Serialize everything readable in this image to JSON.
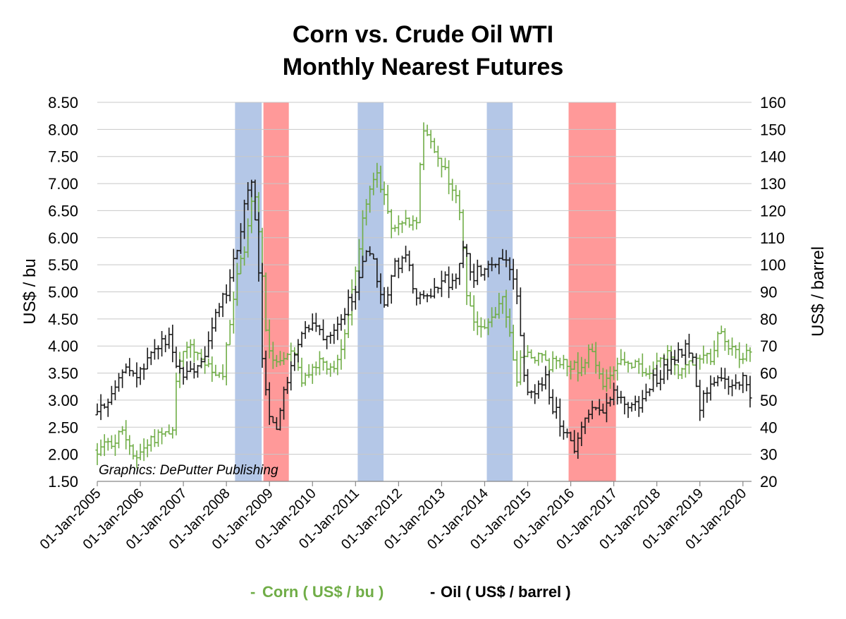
{
  "chart_data": {
    "type": "line",
    "title": "Corn vs. Crude Oil WTI",
    "subtitle": "Monthly Nearest Futures",
    "ylabel_left": "US$ / bu",
    "ylabel_right": "US$ / barrel",
    "credit": "Graphics: DePutter Publishing",
    "ylim_left": [
      1.5,
      8.5
    ],
    "ylim_right": [
      20,
      160
    ],
    "yticks_left": [
      "1.50",
      "2.00",
      "2.50",
      "3.00",
      "3.50",
      "4.00",
      "4.50",
      "5.00",
      "5.50",
      "6.00",
      "6.50",
      "7.00",
      "7.50",
      "8.00",
      "8.50"
    ],
    "yticks_right": [
      "20",
      "30",
      "40",
      "50",
      "60",
      "70",
      "80",
      "90",
      "100",
      "110",
      "120",
      "130",
      "140",
      "150",
      "160"
    ],
    "xlim": [
      2005.0,
      2020.2
    ],
    "x_ticks": [
      {
        "label": "01-Jan-2005",
        "x": 2005
      },
      {
        "label": "01-Jan-2006",
        "x": 2006
      },
      {
        "label": "01-Jan-2007",
        "x": 2007
      },
      {
        "label": "01-Jan-2008",
        "x": 2008
      },
      {
        "label": "01-Jan-2009",
        "x": 2009
      },
      {
        "label": "01-Jan-2010",
        "x": 2010
      },
      {
        "label": "01-Jan-2011",
        "x": 2011
      },
      {
        "label": "01-Jan-2012",
        "x": 2012
      },
      {
        "label": "01-Jan-2013",
        "x": 2013
      },
      {
        "label": "01-Jan-2014",
        "x": 2014
      },
      {
        "label": "01-Jan-2015",
        "x": 2015
      },
      {
        "label": "01-Jan-2016",
        "x": 2016
      },
      {
        "label": "01-Jan-2017",
        "x": 2017
      },
      {
        "label": "01-Jan-2018",
        "x": 2018
      },
      {
        "label": "01-Jan-2019",
        "x": 2019
      },
      {
        "label": "01-Jan-2020",
        "x": 2020
      }
    ],
    "grid": true,
    "legend_position": "bottom-center",
    "shaded_regions": [
      {
        "start": 2008.2,
        "end": 2008.82,
        "color": "#b4c7e7"
      },
      {
        "start": 2008.86,
        "end": 2009.45,
        "color": "#ff9999"
      },
      {
        "start": 2011.05,
        "end": 2011.65,
        "color": "#b4c7e7"
      },
      {
        "start": 2014.05,
        "end": 2014.65,
        "color": "#b4c7e7"
      },
      {
        "start": 2015.95,
        "end": 2017.05,
        "color": "#ff9999"
      }
    ],
    "series": [
      {
        "name": "Corn ( US$ / bu )",
        "axis": "left",
        "color": "#70ad47",
        "anchors": [
          [
            2005.0,
            2.05
          ],
          [
            2005.3,
            2.2
          ],
          [
            2005.6,
            2.4
          ],
          [
            2005.9,
            1.95
          ],
          [
            2006.2,
            2.25
          ],
          [
            2006.5,
            2.4
          ],
          [
            2006.75,
            2.5
          ],
          [
            2006.85,
            3.6
          ],
          [
            2007.15,
            4.1
          ],
          [
            2007.5,
            3.6
          ],
          [
            2007.9,
            3.35
          ],
          [
            2008.2,
            5.1
          ],
          [
            2008.45,
            5.9
          ],
          [
            2008.65,
            7.0
          ],
          [
            2008.8,
            5.6
          ],
          [
            2008.95,
            4.0
          ],
          [
            2009.1,
            3.7
          ],
          [
            2009.35,
            3.9
          ],
          [
            2009.5,
            4.0
          ],
          [
            2009.8,
            3.3
          ],
          [
            2010.2,
            3.8
          ],
          [
            2010.5,
            3.55
          ],
          [
            2010.75,
            4.2
          ],
          [
            2011.0,
            5.5
          ],
          [
            2011.2,
            6.4
          ],
          [
            2011.5,
            7.3
          ],
          [
            2011.7,
            6.6
          ],
          [
            2011.9,
            6.1
          ],
          [
            2012.2,
            6.3
          ],
          [
            2012.45,
            6.4
          ],
          [
            2012.55,
            8.1
          ],
          [
            2012.8,
            7.6
          ],
          [
            2013.1,
            7.2
          ],
          [
            2013.4,
            6.6
          ],
          [
            2013.6,
            4.9
          ],
          [
            2013.85,
            4.3
          ],
          [
            2014.05,
            4.3
          ],
          [
            2014.2,
            4.6
          ],
          [
            2014.4,
            5.0
          ],
          [
            2014.6,
            4.1
          ],
          [
            2014.75,
            3.45
          ],
          [
            2014.9,
            3.9
          ],
          [
            2015.2,
            3.8
          ],
          [
            2015.5,
            3.65
          ],
          [
            2015.8,
            3.8
          ],
          [
            2016.2,
            3.55
          ],
          [
            2016.45,
            4.0
          ],
          [
            2016.7,
            3.3
          ],
          [
            2017.0,
            3.55
          ],
          [
            2017.3,
            3.7
          ],
          [
            2017.6,
            3.6
          ],
          [
            2017.9,
            3.5
          ],
          [
            2018.2,
            3.85
          ],
          [
            2018.5,
            3.55
          ],
          [
            2018.8,
            3.75
          ],
          [
            2019.0,
            3.85
          ],
          [
            2019.3,
            3.7
          ],
          [
            2019.45,
            4.35
          ],
          [
            2019.6,
            4.1
          ],
          [
            2019.8,
            3.85
          ],
          [
            2020.0,
            3.85
          ],
          [
            2020.15,
            3.8
          ]
        ]
      },
      {
        "name": "Oil ( US$ / barrel )",
        "axis": "right",
        "color": "#1a1a1a",
        "anchors": [
          [
            2005.0,
            44
          ],
          [
            2005.3,
            52
          ],
          [
            2005.6,
            62
          ],
          [
            2005.9,
            58
          ],
          [
            2006.2,
            64
          ],
          [
            2006.5,
            72
          ],
          [
            2006.7,
            72
          ],
          [
            2006.85,
            60
          ],
          [
            2007.05,
            58
          ],
          [
            2007.5,
            66
          ],
          [
            2007.8,
            84
          ],
          [
            2008.0,
            90
          ],
          [
            2008.2,
            102
          ],
          [
            2008.4,
            120
          ],
          [
            2008.55,
            133
          ],
          [
            2008.7,
            112
          ],
          [
            2008.85,
            60
          ],
          [
            2009.0,
            42
          ],
          [
            2009.15,
            38
          ],
          [
            2009.3,
            50
          ],
          [
            2009.55,
            68
          ],
          [
            2009.8,
            76
          ],
          [
            2010.0,
            78
          ],
          [
            2010.3,
            74
          ],
          [
            2010.6,
            80
          ],
          [
            2010.9,
            88
          ],
          [
            2011.1,
            95
          ],
          [
            2011.3,
            108
          ],
          [
            2011.5,
            96
          ],
          [
            2011.65,
            84
          ],
          [
            2011.85,
            98
          ],
          [
            2012.15,
            104
          ],
          [
            2012.4,
            88
          ],
          [
            2012.6,
            86
          ],
          [
            2012.8,
            90
          ],
          [
            2013.0,
            95
          ],
          [
            2013.3,
            92
          ],
          [
            2013.5,
            105
          ],
          [
            2013.75,
            96
          ],
          [
            2014.0,
            100
          ],
          [
            2014.3,
            102
          ],
          [
            2014.5,
            104
          ],
          [
            2014.75,
            88
          ],
          [
            2014.9,
            60
          ],
          [
            2015.1,
            50
          ],
          [
            2015.4,
            58
          ],
          [
            2015.6,
            47
          ],
          [
            2015.9,
            38
          ],
          [
            2016.1,
            32
          ],
          [
            2016.3,
            42
          ],
          [
            2016.55,
            46
          ],
          [
            2016.8,
            48
          ],
          [
            2017.0,
            52
          ],
          [
            2017.3,
            48
          ],
          [
            2017.6,
            48
          ],
          [
            2017.9,
            57
          ],
          [
            2018.2,
            62
          ],
          [
            2018.5,
            68
          ],
          [
            2018.8,
            70
          ],
          [
            2019.0,
            48
          ],
          [
            2019.2,
            56
          ],
          [
            2019.4,
            60
          ],
          [
            2019.6,
            55
          ],
          [
            2019.8,
            56
          ],
          [
            2020.0,
            58
          ],
          [
            2020.1,
            53
          ],
          [
            2020.2,
            50
          ]
        ]
      }
    ]
  },
  "legend": {
    "corn_marker": "-",
    "corn_label": "Corn ( US$ / bu )",
    "oil_marker": "-",
    "oil_label": "Oil ( US$ / barrel )"
  }
}
